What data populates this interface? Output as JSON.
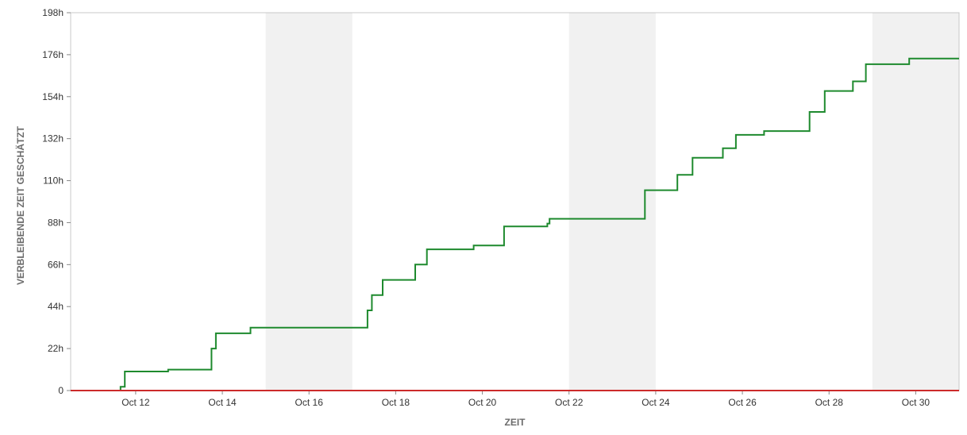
{
  "chart_data": {
    "type": "line",
    "title": "",
    "xlabel": "ZEIT",
    "ylabel": "VERBLEIBENDE ZEIT GESCHÄTZT",
    "xlim": [
      10.5,
      31.0
    ],
    "ylim": [
      0,
      198
    ],
    "y_ticks": [
      {
        "value": 0,
        "label": "0"
      },
      {
        "value": 22,
        "label": "22h"
      },
      {
        "value": 44,
        "label": "44h"
      },
      {
        "value": 66,
        "label": "66h"
      },
      {
        "value": 88,
        "label": "88h"
      },
      {
        "value": 110,
        "label": "110h"
      },
      {
        "value": 132,
        "label": "132h"
      },
      {
        "value": 154,
        "label": "154h"
      },
      {
        "value": 176,
        "label": "176h"
      },
      {
        "value": 198,
        "label": "198h"
      }
    ],
    "x_ticks": [
      {
        "value": 12,
        "label": "Oct 12"
      },
      {
        "value": 14,
        "label": "Oct 14"
      },
      {
        "value": 16,
        "label": "Oct 16"
      },
      {
        "value": 18,
        "label": "Oct 18"
      },
      {
        "value": 20,
        "label": "Oct 20"
      },
      {
        "value": 22,
        "label": "Oct 22"
      },
      {
        "value": 24,
        "label": "Oct 24"
      },
      {
        "value": 26,
        "label": "Oct 26"
      },
      {
        "value": 28,
        "label": "Oct 28"
      },
      {
        "value": 30,
        "label": "Oct 30"
      }
    ],
    "weekend_bands": [
      [
        15,
        17
      ],
      [
        22,
        24
      ],
      [
        29,
        31
      ]
    ],
    "grid": false,
    "series": [
      {
        "color": "#1e8a2e",
        "step": true,
        "points": [
          [
            11.65,
            0
          ],
          [
            11.65,
            2
          ],
          [
            11.75,
            2
          ],
          [
            11.75,
            10
          ],
          [
            12.75,
            10
          ],
          [
            12.75,
            11
          ],
          [
            13.75,
            11
          ],
          [
            13.75,
            22
          ],
          [
            13.85,
            22
          ],
          [
            13.85,
            30
          ],
          [
            14.65,
            30
          ],
          [
            14.65,
            33
          ],
          [
            17.35,
            33
          ],
          [
            17.35,
            42
          ],
          [
            17.45,
            42
          ],
          [
            17.45,
            50
          ],
          [
            17.7,
            50
          ],
          [
            17.7,
            58
          ],
          [
            18.45,
            58
          ],
          [
            18.45,
            66
          ],
          [
            18.72,
            66
          ],
          [
            18.72,
            74
          ],
          [
            19.8,
            74
          ],
          [
            19.8,
            76
          ],
          [
            20.5,
            76
          ],
          [
            20.5,
            86
          ],
          [
            21.5,
            86
          ],
          [
            21.5,
            87.5
          ],
          [
            21.55,
            87.5
          ],
          [
            21.55,
            90
          ],
          [
            23.75,
            90
          ],
          [
            23.75,
            105
          ],
          [
            24.5,
            105
          ],
          [
            24.5,
            113
          ],
          [
            24.85,
            113
          ],
          [
            24.85,
            122
          ],
          [
            25.55,
            122
          ],
          [
            25.55,
            127
          ],
          [
            25.85,
            127
          ],
          [
            25.85,
            134
          ],
          [
            26.5,
            134
          ],
          [
            26.5,
            136
          ],
          [
            27.55,
            136
          ],
          [
            27.55,
            146
          ],
          [
            27.9,
            146
          ],
          [
            27.9,
            157
          ],
          [
            28.55,
            157
          ],
          [
            28.55,
            162
          ],
          [
            28.85,
            162
          ],
          [
            28.85,
            171
          ],
          [
            29.85,
            171
          ],
          [
            29.85,
            174
          ],
          [
            31.0,
            174
          ]
        ]
      },
      {
        "color": "#cc2b2b",
        "step": false,
        "points": [
          [
            10.5,
            0
          ],
          [
            31.0,
            0
          ]
        ]
      }
    ]
  }
}
